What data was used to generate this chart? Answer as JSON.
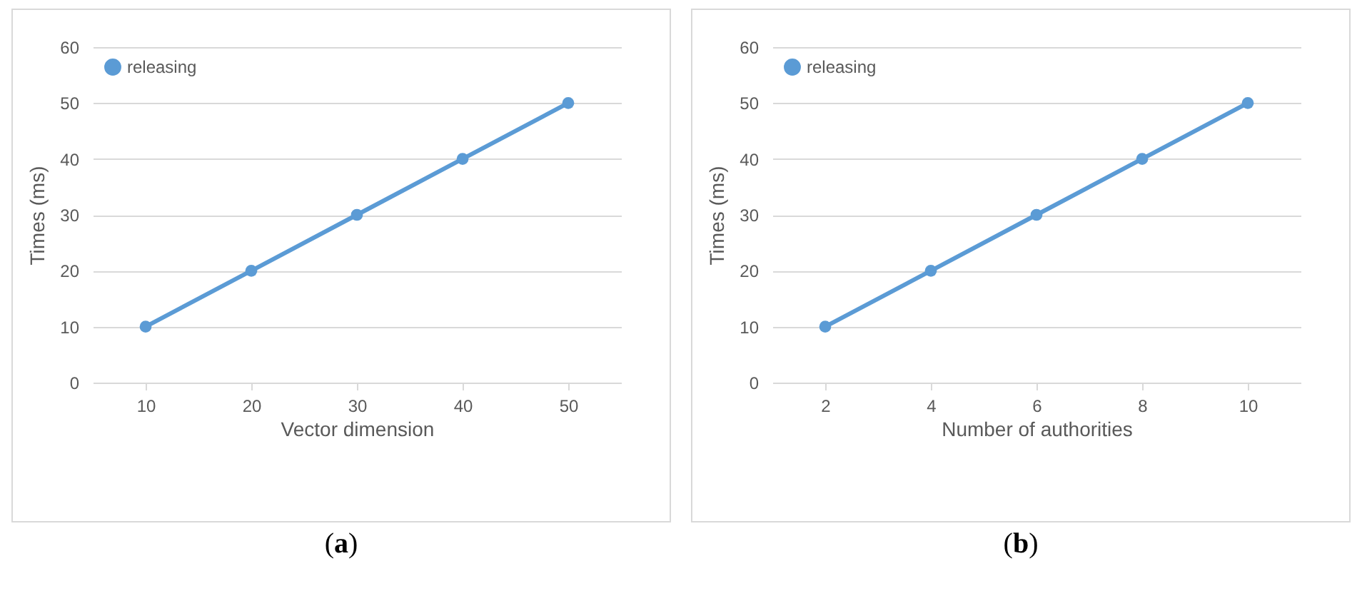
{
  "chart_data": [
    {
      "type": "line",
      "ylabel": "Times (ms)",
      "xlabel": "Vector dimension",
      "annotations": [
        "(a)"
      ],
      "categories": [
        "10",
        "20",
        "30",
        "40",
        "50"
      ],
      "series": [
        {
          "name": "releasing",
          "color": "#5b9bd5",
          "values": [
            10,
            20,
            30,
            40,
            50
          ]
        }
      ],
      "ylim": [
        0,
        60
      ],
      "yticks": [
        0,
        10,
        20,
        30,
        40,
        50,
        60
      ],
      "grid": "y",
      "legend": "top left",
      "marker": "circle",
      "line_style": "solid"
    },
    {
      "type": "line",
      "ylabel": "Times (ms)",
      "xlabel": "Number of authorities",
      "annotations": [
        "(b)"
      ],
      "categories": [
        "2",
        "4",
        "6",
        "8",
        "10"
      ],
      "series": [
        {
          "name": "releasing",
          "color": "#5b9bd5",
          "values": [
            10,
            20,
            30,
            40,
            50
          ]
        }
      ],
      "ylim": [
        0,
        60
      ],
      "yticks": [
        0,
        10,
        20,
        30,
        40,
        50,
        60
      ],
      "grid": "y",
      "legend": "top left",
      "marker": "circle",
      "line_style": "solid"
    }
  ]
}
